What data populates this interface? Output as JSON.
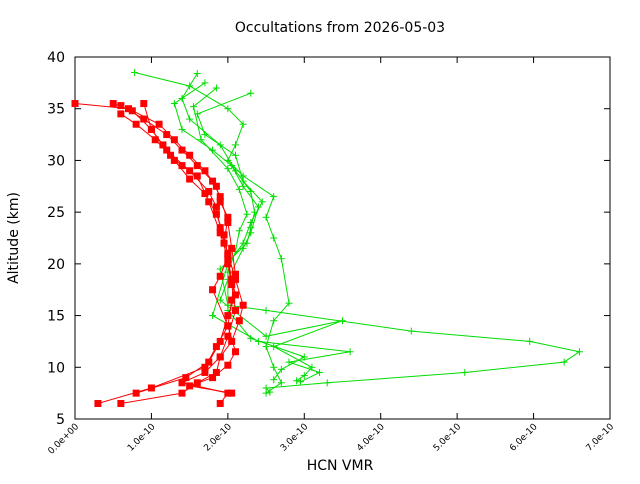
{
  "chart_data": {
    "type": "line",
    "title": "Occultations from 2026-05-03",
    "xlabel": "HCN VMR",
    "ylabel": "Altitude (km)",
    "xlim": [
      0,
      7e-10
    ],
    "ylim": [
      5,
      40
    ],
    "x_ticks": [
      {
        "value": 0,
        "label": "0.0e+00"
      },
      {
        "value": 1e-10,
        "label": "1.0e-10"
      },
      {
        "value": 2e-10,
        "label": "2.0e-10"
      },
      {
        "value": 3e-10,
        "label": "3.0e-10"
      },
      {
        "value": 4e-10,
        "label": "4.0e-10"
      },
      {
        "value": 5e-10,
        "label": "5.0e-10"
      },
      {
        "value": 6e-10,
        "label": "6.0e-10"
      },
      {
        "value": 7e-10,
        "label": "7.0e-10"
      }
    ],
    "y_ticks": [
      {
        "value": 5,
        "label": "5"
      },
      {
        "value": 10,
        "label": "10"
      },
      {
        "value": 15,
        "label": "15"
      },
      {
        "value": 20,
        "label": "20"
      },
      {
        "value": 25,
        "label": "25"
      },
      {
        "value": 30,
        "label": "30"
      },
      {
        "value": 35,
        "label": "35"
      },
      {
        "value": 40,
        "label": "40"
      }
    ],
    "grid": false,
    "legend": "none",
    "series": [
      {
        "marker": "cross",
        "color": "#00dd00",
        "x": [
          7.8e-11,
          1.5e-10,
          2e-10,
          2.2e-10,
          2.1e-10,
          2e-10,
          2.2e-10,
          2.6e-10,
          2.5e-10,
          2.6e-10,
          2.7e-10,
          2.8e-10,
          2.6e-10,
          2.5e-10,
          2.6e-10,
          2.7e-10,
          2.5e-10
        ],
        "y": [
          38.5,
          37.2,
          35.0,
          33.5,
          31.5,
          30.0,
          28.5,
          26.5,
          24.5,
          22.5,
          20.5,
          16.2,
          14.5,
          12.0,
          10.0,
          8.5,
          7.5
        ]
      },
      {
        "marker": "cross",
        "color": "#00dd00",
        "x": [
          1.6e-10,
          1.4e-10,
          1.5e-10,
          1.9e-10,
          2.1e-10,
          2.3e-10,
          2.35e-10,
          2.3e-10,
          2.25e-10,
          1.9e-10,
          2e-10,
          2.5e-10,
          4.4e-10,
          5.95e-10,
          6.6e-10,
          6.4e-10,
          5.1e-10,
          3.3e-10,
          2.5e-10,
          2.55e-10
        ],
        "y": [
          38.4,
          36.0,
          34.0,
          31.5,
          29.0,
          27.0,
          25.0,
          23.5,
          22.0,
          19.5,
          16.0,
          15.5,
          13.5,
          12.5,
          11.5,
          10.5,
          9.5,
          8.5,
          8.0,
          7.6
        ]
      },
      {
        "marker": "cross",
        "color": "#00dd00",
        "x": [
          1.7e-10,
          1.3e-10,
          1.4e-10,
          1.8e-10,
          2.05e-10,
          2.2e-10,
          2.4e-10,
          2.3e-10,
          2.2e-10,
          2e-10,
          1.9e-10,
          2.5e-10,
          3.5e-10,
          2.6e-10,
          3.1e-10,
          3e-10,
          2.9e-10
        ],
        "y": [
          37.5,
          35.5,
          33.0,
          31.0,
          29.5,
          27.5,
          25.5,
          23.0,
          21.5,
          18.5,
          16.5,
          13.0,
          14.5,
          12.0,
          10.0,
          9.2,
          8.7
        ]
      },
      {
        "marker": "cross",
        "color": "#00dd00",
        "x": [
          2.3e-10,
          1.6e-10,
          1.7e-10,
          2.1e-10,
          2.2e-10,
          2.45e-10,
          2.3e-10,
          2.2e-10,
          2e-10,
          1.8e-10,
          2.4e-10,
          3.6e-10,
          2.8e-10,
          3.2e-10,
          2.95e-10
        ],
        "y": [
          36.5,
          34.5,
          32.5,
          30.5,
          28.0,
          26.0,
          24.0,
          22.0,
          20.0,
          15.0,
          12.5,
          11.5,
          10.5,
          9.5,
          8.6
        ]
      },
      {
        "marker": "cross",
        "color": "#00dd00",
        "x": [
          1.85e-10,
          1.55e-10,
          1.65e-10,
          2e-10,
          2.15e-10,
          2.25e-10,
          2.15e-10,
          2.1e-10,
          2e-10,
          2e-10,
          2.3e-10,
          3e-10,
          2.7e-10,
          2.6e-10
        ],
        "y": [
          37.0,
          35.2,
          32.0,
          29.2,
          27.2,
          24.8,
          23.2,
          21.2,
          19.2,
          15.5,
          12.8,
          11.0,
          9.8,
          8.8
        ]
      },
      {
        "marker": "square",
        "color": "#ff0000",
        "x": [
          0,
          7e-11,
          1.1e-10,
          1.3e-10,
          1.5e-10,
          1.7e-10,
          1.85e-10,
          1.9e-10,
          2e-10,
          1.95e-10,
          2e-10,
          2.05e-10,
          2.1e-10,
          2e-10,
          1.9e-10,
          1.85e-10,
          1.6e-10,
          1.4e-10,
          6e-11
        ],
        "y": [
          35.5,
          35.0,
          33.5,
          32.0,
          30.5,
          29.0,
          27.5,
          26.0,
          24.5,
          22.0,
          20.0,
          18.0,
          15.5,
          13.0,
          11.0,
          9.5,
          8.5,
          7.5,
          6.5
        ]
      },
      {
        "marker": "square",
        "color": "#ff0000",
        "x": [
          6e-11,
          9e-11,
          1.2e-10,
          1.4e-10,
          1.6e-10,
          1.8e-10,
          1.9e-10,
          2e-10,
          2.05e-10,
          2.1e-10,
          2.05e-10,
          2e-10,
          1.85e-10,
          1.7e-10,
          1e-10,
          3e-11
        ],
        "y": [
          35.3,
          34.0,
          32.5,
          31.0,
          29.5,
          28.0,
          26.5,
          24.0,
          21.5,
          19.0,
          16.5,
          14.0,
          12.0,
          10.0,
          8.0,
          6.5
        ]
      },
      {
        "marker": "square",
        "color": "#ff0000",
        "x": [
          9e-11,
          1e-10,
          1.2e-10,
          1.5e-10,
          1.75e-10,
          1.85e-10,
          1.9e-10,
          2e-10,
          2.1e-10,
          2.2e-10,
          2.15e-10,
          2.05e-10,
          1.9e-10,
          1.7e-10,
          1.4e-10,
          2e-10,
          1.9e-10
        ],
        "y": [
          35.5,
          33.0,
          31.0,
          29.0,
          27.0,
          25.5,
          23.5,
          21.0,
          18.5,
          16.0,
          14.5,
          12.5,
          11.0,
          9.5,
          8.5,
          7.5,
          6.5
        ]
      },
      {
        "marker": "square",
        "color": "#ff0000",
        "x": [
          6e-11,
          8e-11,
          1.05e-10,
          1.25e-10,
          1.4e-10,
          1.6e-10,
          1.75e-10,
          1.9e-10,
          2e-10,
          2.05e-10,
          2.1e-10,
          2e-10,
          1.9e-10,
          1.75e-10,
          1.45e-10,
          8e-11
        ],
        "y": [
          34.5,
          33.5,
          32.0,
          30.5,
          29.5,
          28.5,
          26.0,
          23.0,
          20.5,
          18.5,
          17.0,
          15.0,
          12.5,
          10.5,
          9.0,
          7.5
        ]
      },
      {
        "marker": "square",
        "color": "#ff0000",
        "x": [
          5e-11,
          7.5e-11,
          1e-10,
          1.15e-10,
          1.3e-10,
          1.5e-10,
          1.7e-10,
          1.85e-10,
          1.95e-10,
          2e-10,
          1.9e-10,
          1.8e-10,
          2e-10,
          2.1e-10,
          2e-10,
          1.8e-10,
          1.5e-10,
          2.05e-10
        ],
        "y": [
          35.5,
          34.8,
          33.0,
          31.5,
          30.0,
          28.2,
          26.8,
          24.8,
          22.8,
          20.8,
          18.8,
          17.5,
          14.0,
          11.5,
          10.2,
          9.0,
          8.2,
          7.5
        ]
      }
    ]
  }
}
